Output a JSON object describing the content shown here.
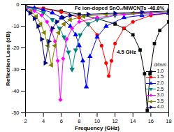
{
  "chart_data": {
    "type": "line",
    "x_label": "Frequency (GHz)",
    "y_label": "Reflection Loss (dB)",
    "xlim": [
      2,
      18
    ],
    "xticks": [
      2,
      4,
      6,
      8,
      10,
      12,
      14,
      16,
      18
    ],
    "ylim": [
      -50,
      0
    ],
    "yticks": [
      0,
      -10,
      -20,
      -30,
      -40,
      -50
    ],
    "legend": "lower right",
    "legend_title": "d/mm",
    "annotations": [
      {
        "text": "Fe ion-doped SnO₂/MWCNTs -48.8%",
        "x": 7.5,
        "y": -1.8
      },
      {
        "text": "4.5 GHz",
        "x": 12.2,
        "y": -22
      }
    ],
    "series": [
      {
        "name": "1.0",
        "color": "#000000",
        "marker": "square",
        "x": [
          2,
          4,
          6,
          8,
          10,
          12,
          13,
          14,
          14.8,
          15.3,
          15.6,
          15.9,
          16.4,
          17,
          18
        ],
        "values": [
          -1,
          -1.8,
          -3,
          -4.5,
          -6.5,
          -9,
          -11,
          -14,
          -21,
          -32,
          -48.8,
          -32,
          -18,
          -12,
          -8
        ]
      },
      {
        "name": "1.5",
        "color": "#ff0000",
        "marker": "circle",
        "x": [
          2,
          4,
          6,
          8,
          9,
          10,
          10.5,
          11,
          11.3,
          11.6,
          12,
          13,
          14,
          16,
          18
        ],
        "values": [
          -0.8,
          -1.8,
          -3.5,
          -6,
          -9,
          -14,
          -19,
          -27,
          -33,
          -26,
          -18,
          -11,
          -8,
          -5,
          -4
        ]
      },
      {
        "name": "2.0",
        "color": "#0000ff",
        "marker": "triangle-up",
        "x": [
          2,
          3,
          4,
          5,
          6,
          7,
          7.6,
          8,
          8.4,
          8.8,
          9.2,
          10,
          11,
          13,
          15,
          18
        ],
        "values": [
          -1,
          -1.6,
          -2.5,
          -3.8,
          -6,
          -10,
          -14,
          -19,
          -26,
          -38,
          -24,
          -15,
          -10,
          -6,
          -5,
          -4
        ]
      },
      {
        "name": "2.5",
        "color": "#008080",
        "marker": "triangle-down",
        "x": [
          2,
          3,
          4,
          5,
          5.8,
          6.3,
          6.8,
          7.2,
          7.6,
          8.1,
          9,
          10,
          12,
          15,
          18
        ],
        "values": [
          -1.2,
          -2.2,
          -3.8,
          -7,
          -11,
          -15,
          -22,
          -30,
          -21,
          -14,
          -9,
          -7,
          -5,
          -4,
          -3.5
        ]
      },
      {
        "name": "3.0",
        "color": "#ff00ff",
        "marker": "diamond",
        "x": [
          2,
          3,
          3.8,
          4.4,
          4.9,
          5.3,
          5.6,
          5.9,
          6.2,
          6.6,
          7.2,
          8,
          10,
          13,
          16,
          18
        ],
        "values": [
          -1.5,
          -3,
          -5,
          -8,
          -12,
          -17,
          -26,
          -44,
          -25,
          -16,
          -11,
          -8,
          -6,
          -4.5,
          -4,
          -3.5
        ]
      },
      {
        "name": "3.5",
        "color": "#808000",
        "marker": "triangle-left",
        "x": [
          2,
          2.6,
          3.2,
          3.7,
          4.1,
          4.5,
          4.9,
          5.3,
          5.7,
          6.3,
          7,
          8.5,
          11,
          14,
          18
        ],
        "values": [
          -2,
          -3.2,
          -5.5,
          -9,
          -13,
          -19,
          -28,
          -19,
          -13,
          -9,
          -7,
          -5.5,
          -4.5,
          -4,
          -3.5
        ]
      },
      {
        "name": "4.0",
        "color": "#000080",
        "marker": "triangle-right",
        "x": [
          2,
          2.5,
          3,
          3.4,
          3.8,
          4.2,
          4.6,
          5,
          5.5,
          6.2,
          7,
          9,
          12,
          15,
          18
        ],
        "values": [
          -2.5,
          -4,
          -6.5,
          -10,
          -16,
          -27,
          -17,
          -11,
          -8,
          -6,
          -5,
          -4.5,
          -4,
          -3.5,
          -3
        ]
      }
    ]
  }
}
